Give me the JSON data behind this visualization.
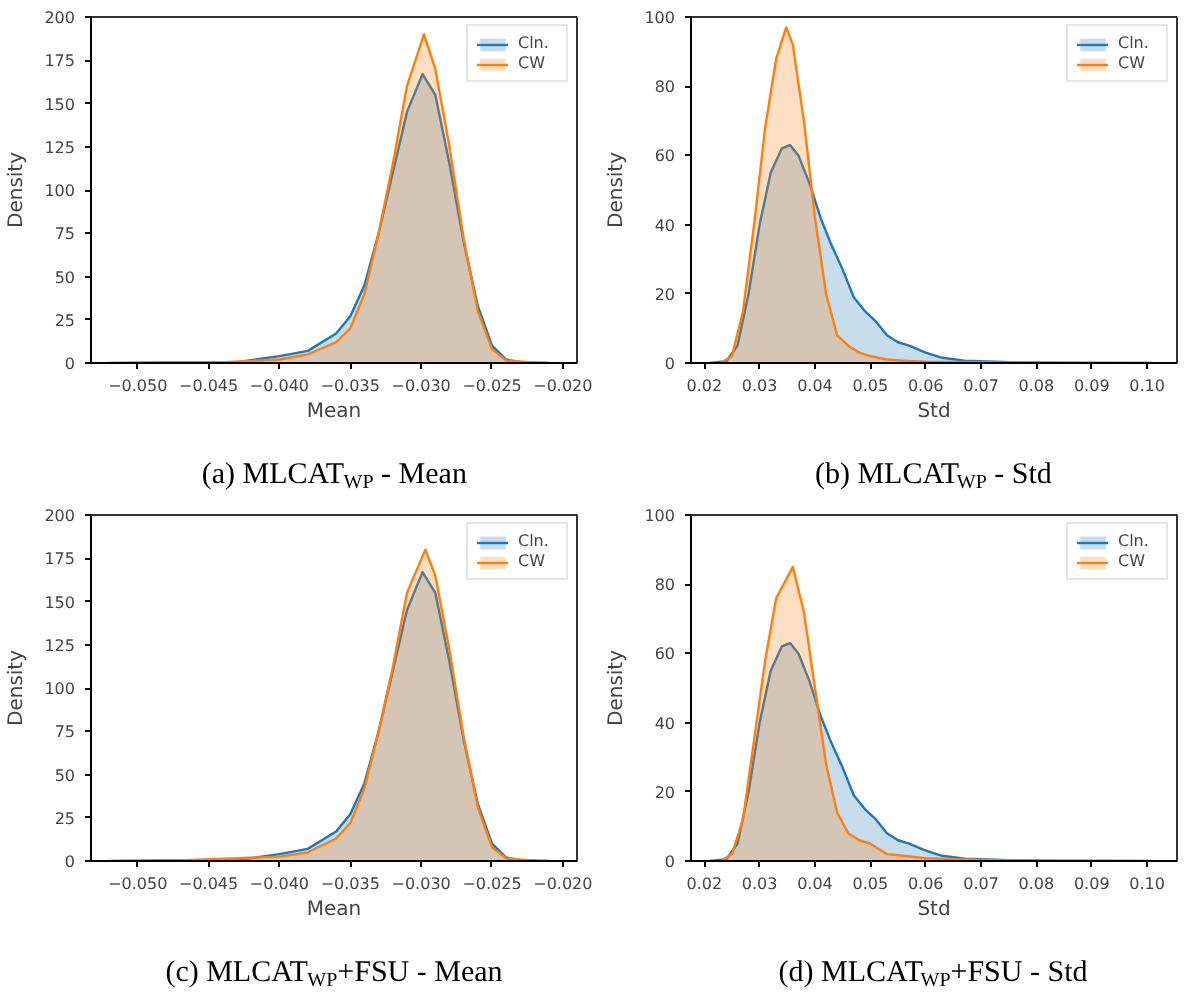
{
  "chart_data": [
    {
      "type": "area",
      "title": "(a) MLCAT$_{WP}$ - Mean",
      "xlabel": "Mean",
      "ylabel": "Density",
      "xlim": [
        -0.0533,
        -0.019
      ],
      "ylim": [
        0,
        200
      ],
      "xticks": [
        {
          "value": -0.05,
          "label": "−0.050"
        },
        {
          "value": -0.045,
          "label": "−0.045"
        },
        {
          "value": -0.04,
          "label": "−0.040"
        },
        {
          "value": -0.035,
          "label": "−0.035"
        },
        {
          "value": -0.03,
          "label": "−0.030"
        },
        {
          "value": -0.025,
          "label": "−0.025"
        },
        {
          "value": -0.02,
          "label": "−0.020"
        }
      ],
      "yticks": [
        0,
        25,
        50,
        75,
        100,
        125,
        150,
        175,
        200
      ],
      "legend": "top right",
      "grid": false,
      "series": [
        {
          "name": "Cln.",
          "color": "#1f77b4",
          "x": [
            -0.052,
            -0.048,
            -0.043,
            -0.04,
            -0.038,
            -0.036,
            -0.035,
            -0.034,
            -0.033,
            -0.032,
            -0.031,
            -0.0299,
            -0.029,
            -0.028,
            -0.027,
            -0.026,
            -0.025,
            -0.024,
            -0.023,
            -0.021
          ],
          "values": [
            0,
            0.3,
            0.5,
            4,
            7,
            17,
            27,
            45,
            75,
            110,
            145,
            167,
            155,
            115,
            70,
            33,
            10,
            2,
            0.5,
            0
          ]
        },
        {
          "name": "CW",
          "color": "#ff7f0e",
          "x": [
            -0.045,
            -0.04,
            -0.038,
            -0.036,
            -0.035,
            -0.034,
            -0.033,
            -0.032,
            -0.031,
            -0.0298,
            -0.029,
            -0.028,
            -0.027,
            -0.026,
            -0.025,
            -0.024,
            -0.022,
            -0.021
          ],
          "values": [
            0,
            2,
            5,
            12,
            20,
            40,
            75,
            115,
            160,
            190,
            170,
            125,
            72,
            30,
            8,
            1.5,
            0.2,
            0
          ]
        }
      ]
    },
    {
      "type": "area",
      "title": "(b) MLCAT$_{WP}$ - Std",
      "xlabel": "Std",
      "ylabel": "Density",
      "xlim": [
        0.0176,
        0.1054
      ],
      "ylim": [
        0,
        100
      ],
      "xticks": [
        {
          "value": 0.02,
          "label": "0.02"
        },
        {
          "value": 0.03,
          "label": "0.03"
        },
        {
          "value": 0.04,
          "label": "0.04"
        },
        {
          "value": 0.05,
          "label": "0.05"
        },
        {
          "value": 0.06,
          "label": "0.06"
        },
        {
          "value": 0.07,
          "label": "0.07"
        },
        {
          "value": 0.08,
          "label": "0.08"
        },
        {
          "value": 0.09,
          "label": "0.09"
        },
        {
          "value": 0.1,
          "label": "0.10"
        }
      ],
      "yticks": [
        0,
        20,
        40,
        60,
        80,
        100
      ],
      "legend": "top right",
      "grid": false,
      "series": [
        {
          "name": "Cln.",
          "color": "#1f77b4",
          "x": [
            0.021,
            0.024,
            0.026,
            0.028,
            0.03,
            0.032,
            0.034,
            0.0355,
            0.037,
            0.039,
            0.041,
            0.043,
            0.045,
            0.047,
            0.049,
            0.051,
            0.053,
            0.055,
            0.057,
            0.06,
            0.063,
            0.067,
            0.075,
            0.085,
            0.101
          ],
          "values": [
            0,
            0.5,
            5,
            20,
            40,
            55,
            62,
            63,
            60,
            52,
            42,
            34,
            27,
            19,
            15,
            12,
            8,
            6,
            5,
            3,
            1.5,
            0.7,
            0.2,
            0.1,
            0
          ]
        },
        {
          "name": "CW",
          "color": "#ff7f0e",
          "x": [
            0.023,
            0.025,
            0.027,
            0.029,
            0.031,
            0.033,
            0.0348,
            0.036,
            0.038,
            0.04,
            0.042,
            0.044,
            0.046,
            0.048,
            0.05,
            0.053,
            0.056,
            0.06,
            0.07,
            0.077
          ],
          "values": [
            0,
            2,
            15,
            40,
            68,
            88,
            97,
            92,
            70,
            42,
            20,
            8,
            5,
            3,
            2,
            1,
            0.7,
            0.4,
            0.2,
            0
          ]
        }
      ]
    },
    {
      "type": "area",
      "title": "(c) MLCAT$_{WP}$+FSU - Mean",
      "xlabel": "Mean",
      "ylabel": "Density",
      "xlim": [
        -0.0533,
        -0.019
      ],
      "ylim": [
        0,
        200
      ],
      "xticks": [
        {
          "value": -0.05,
          "label": "−0.050"
        },
        {
          "value": -0.045,
          "label": "−0.045"
        },
        {
          "value": -0.04,
          "label": "−0.040"
        },
        {
          "value": -0.035,
          "label": "−0.035"
        },
        {
          "value": -0.03,
          "label": "−0.030"
        },
        {
          "value": -0.025,
          "label": "−0.025"
        },
        {
          "value": -0.02,
          "label": "−0.020"
        }
      ],
      "yticks": [
        0,
        25,
        50,
        75,
        100,
        125,
        150,
        175,
        200
      ],
      "legend": "top right",
      "grid": false,
      "series": [
        {
          "name": "Cln.",
          "color": "#1f77b4",
          "x": [
            -0.052,
            -0.048,
            -0.043,
            -0.04,
            -0.038,
            -0.036,
            -0.035,
            -0.034,
            -0.033,
            -0.032,
            -0.031,
            -0.0299,
            -0.029,
            -0.028,
            -0.027,
            -0.026,
            -0.025,
            -0.024,
            -0.023,
            -0.021
          ],
          "values": [
            0,
            0.3,
            0.5,
            4,
            7,
            17,
            27,
            45,
            75,
            110,
            145,
            167,
            155,
            115,
            70,
            33,
            10,
            2,
            0.5,
            0
          ]
        },
        {
          "name": "CW",
          "color": "#ff7f0e",
          "x": [
            -0.048,
            -0.04,
            -0.038,
            -0.036,
            -0.035,
            -0.034,
            -0.033,
            -0.032,
            -0.031,
            -0.0297,
            -0.029,
            -0.028,
            -0.027,
            -0.026,
            -0.025,
            -0.024,
            -0.022,
            -0.021
          ],
          "values": [
            0,
            2.5,
            5,
            13,
            22,
            42,
            75,
            112,
            155,
            180,
            165,
            122,
            72,
            31,
            8,
            1.5,
            0.2,
            0
          ]
        }
      ]
    },
    {
      "type": "area",
      "title": "(d) MLCAT$_{WP}$+FSU - Std",
      "xlabel": "Std",
      "ylabel": "Density",
      "xlim": [
        0.0176,
        0.1054
      ],
      "ylim": [
        0,
        100
      ],
      "xticks": [
        {
          "value": 0.02,
          "label": "0.02"
        },
        {
          "value": 0.03,
          "label": "0.03"
        },
        {
          "value": 0.04,
          "label": "0.04"
        },
        {
          "value": 0.05,
          "label": "0.05"
        },
        {
          "value": 0.06,
          "label": "0.06"
        },
        {
          "value": 0.07,
          "label": "0.07"
        },
        {
          "value": 0.08,
          "label": "0.08"
        },
        {
          "value": 0.09,
          "label": "0.09"
        },
        {
          "value": 0.1,
          "label": "0.10"
        }
      ],
      "yticks": [
        0,
        20,
        40,
        60,
        80,
        100
      ],
      "legend": "top right",
      "grid": false,
      "series": [
        {
          "name": "Cln.",
          "color": "#1f77b4",
          "x": [
            0.021,
            0.024,
            0.026,
            0.028,
            0.03,
            0.032,
            0.034,
            0.0355,
            0.037,
            0.039,
            0.041,
            0.043,
            0.045,
            0.047,
            0.049,
            0.051,
            0.053,
            0.055,
            0.057,
            0.06,
            0.063,
            0.067,
            0.075,
            0.085,
            0.101
          ],
          "values": [
            0,
            0.5,
            5,
            20,
            40,
            55,
            62,
            63,
            60,
            52,
            42,
            34,
            27,
            19,
            15,
            12,
            8,
            6,
            5,
            3,
            1.5,
            0.7,
            0.2,
            0.1,
            0
          ]
        },
        {
          "name": "CW",
          "color": "#ff7f0e",
          "x": [
            0.023,
            0.025,
            0.027,
            0.029,
            0.031,
            0.033,
            0.036,
            0.038,
            0.04,
            0.042,
            0.044,
            0.046,
            0.048,
            0.05,
            0.051,
            0.053,
            0.056,
            0.06,
            0.07,
            0.08
          ],
          "values": [
            0,
            2,
            12,
            35,
            58,
            76,
            85,
            72,
            50,
            28,
            14,
            8,
            6,
            5,
            4,
            2,
            1.5,
            0.8,
            0.3,
            0
          ]
        }
      ]
    }
  ]
}
